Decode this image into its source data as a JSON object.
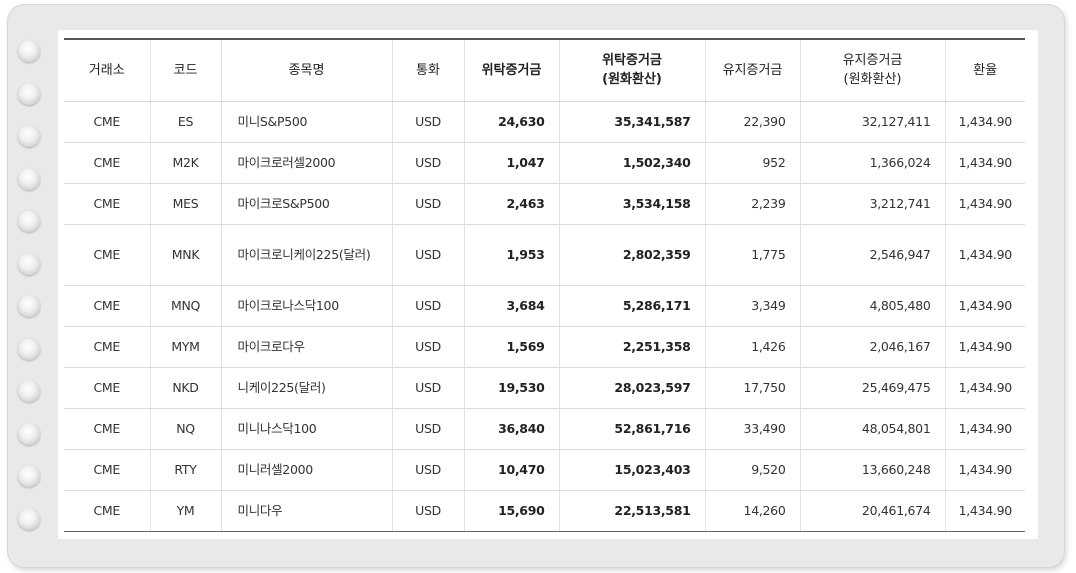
{
  "table": {
    "headers": {
      "exchange": "거래소",
      "code": "코드",
      "name": "종목명",
      "currency": "통화",
      "initial_margin": "위탁증거금",
      "initial_margin_krw_line1": "위탁증거금",
      "initial_margin_krw_line2": "(원화환산)",
      "maintenance_margin": "유지증거금",
      "maintenance_margin_krw_line1": "유지증거금",
      "maintenance_margin_krw_line2": "(원화환산)",
      "exchange_rate": "환율"
    },
    "rows": [
      {
        "exchange": "CME",
        "code": "ES",
        "name": "미니S&P500",
        "currency": "USD",
        "initial": "24,630",
        "initial_krw": "35,341,587",
        "maint": "22,390",
        "maint_krw": "32,127,411",
        "rate": "1,434.90"
      },
      {
        "exchange": "CME",
        "code": "M2K",
        "name": "마이크로러셀2000",
        "currency": "USD",
        "initial": "1,047",
        "initial_krw": "1,502,340",
        "maint": "952",
        "maint_krw": "1,366,024",
        "rate": "1,434.90"
      },
      {
        "exchange": "CME",
        "code": "MES",
        "name": "마이크로S&P500",
        "currency": "USD",
        "initial": "2,463",
        "initial_krw": "3,534,158",
        "maint": "2,239",
        "maint_krw": "3,212,741",
        "rate": "1,434.90"
      },
      {
        "exchange": "CME",
        "code": "MNK",
        "name": "마이크로니케이225(달러)",
        "currency": "USD",
        "initial": "1,953",
        "initial_krw": "2,802,359",
        "maint": "1,775",
        "maint_krw": "2,546,947",
        "rate": "1,434.90"
      },
      {
        "exchange": "CME",
        "code": "MNQ",
        "name": "마이크로나스닥100",
        "currency": "USD",
        "initial": "3,684",
        "initial_krw": "5,286,171",
        "maint": "3,349",
        "maint_krw": "4,805,480",
        "rate": "1,434.90"
      },
      {
        "exchange": "CME",
        "code": "MYM",
        "name": "마이크로다우",
        "currency": "USD",
        "initial": "1,569",
        "initial_krw": "2,251,358",
        "maint": "1,426",
        "maint_krw": "2,046,167",
        "rate": "1,434.90"
      },
      {
        "exchange": "CME",
        "code": "NKD",
        "name": "니케이225(달러)",
        "currency": "USD",
        "initial": "19,530",
        "initial_krw": "28,023,597",
        "maint": "17,750",
        "maint_krw": "25,469,475",
        "rate": "1,434.90"
      },
      {
        "exchange": "CME",
        "code": "NQ",
        "name": "미니나스닥100",
        "currency": "USD",
        "initial": "36,840",
        "initial_krw": "52,861,716",
        "maint": "33,490",
        "maint_krw": "48,054,801",
        "rate": "1,434.90"
      },
      {
        "exchange": "CME",
        "code": "RTY",
        "name": "미니러셀2000",
        "currency": "USD",
        "initial": "10,470",
        "initial_krw": "15,023,403",
        "maint": "9,520",
        "maint_krw": "13,660,248",
        "rate": "1,434.90"
      },
      {
        "exchange": "CME",
        "code": "YM",
        "name": "미니다우",
        "currency": "USD",
        "initial": "15,690",
        "initial_krw": "22,513,581",
        "maint": "14,260",
        "maint_krw": "20,461,674",
        "rate": "1,434.90"
      }
    ]
  }
}
